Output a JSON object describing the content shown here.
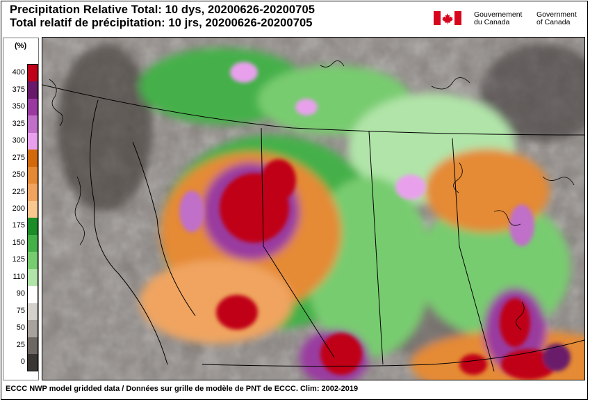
{
  "titles": {
    "line1": "Precipitation Relative Total: 10 dys, 20200626-20200705",
    "line2": "Total relatif de précipitation: 10 jrs, 20200626-20200705"
  },
  "government": {
    "fr_line1": "Gouvernement",
    "fr_line2": "du Canada",
    "en_line1": "Government",
    "en_line2": "of Canada",
    "flag_color": "#d8061d"
  },
  "legend": {
    "unit": "(%)",
    "entries": [
      {
        "label": "400",
        "color": "#c00018"
      },
      {
        "label": "375",
        "color": "#6a1a6a"
      },
      {
        "label": "350",
        "color": "#9a3aa0"
      },
      {
        "label": "325",
        "color": "#c070c8"
      },
      {
        "label": "300",
        "color": "#e8a0ec"
      },
      {
        "label": "275",
        "color": "#d26a0c"
      },
      {
        "label": "250",
        "color": "#e58a34"
      },
      {
        "label": "225",
        "color": "#f0a460"
      },
      {
        "label": "200",
        "color": "#f8c890"
      },
      {
        "label": "175",
        "color": "#1c8c28"
      },
      {
        "label": "150",
        "color": "#44b048"
      },
      {
        "label": "125",
        "color": "#78cc70"
      },
      {
        "label": "110",
        "color": "#b0e4a8"
      },
      {
        "label": "90",
        "color": "#ffffff"
      },
      {
        "label": "75",
        "color": "#d4d0cc"
      },
      {
        "label": "50",
        "color": "#a8a29e"
      },
      {
        "label": "25",
        "color": "#6e6864"
      },
      {
        "label": "0",
        "color": "#3a3634"
      }
    ]
  },
  "map": {
    "ocean_color": "#6e6864",
    "border_color": "#000000",
    "land_base_color": "#78cc70"
  },
  "footer": "ECCC NWP model gridded data / Données sur grille de modèle de PNT de ECCC. Clim: 2002-2019"
}
